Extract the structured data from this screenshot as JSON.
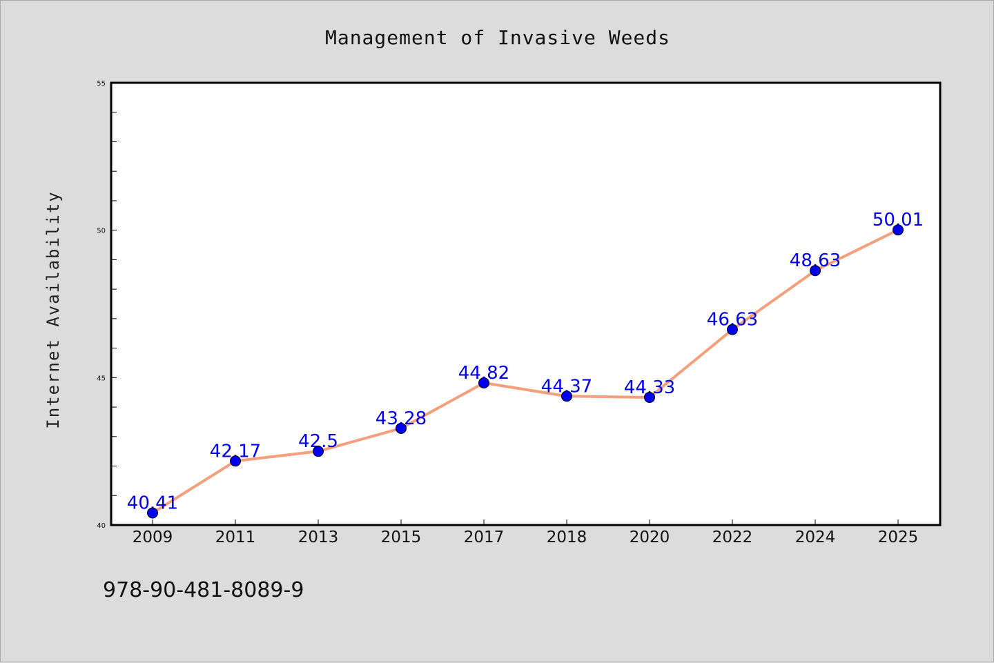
{
  "figure": {
    "background": "#dcdcdc",
    "isbn": "978-90-481-8089-9"
  },
  "chart_data": {
    "type": "line",
    "title": "Management of Invasive Weeds",
    "xlabel": "",
    "ylabel": "Internet Availability",
    "categories": [
      "2009",
      "2011",
      "2013",
      "2015",
      "2017",
      "2018",
      "2020",
      "2022",
      "2024",
      "2025"
    ],
    "series": [
      {
        "values": [
          40.41,
          42.17,
          42.5,
          43.28,
          44.82,
          44.37,
          44.33,
          46.63,
          48.63,
          50.01
        ],
        "data_labels": [
          "40.41",
          "42.17",
          "42.5",
          "43.28",
          "44.82",
          "44.37",
          "44.33",
          "46.63",
          "48.63",
          "50.01"
        ],
        "line_color": "#f4a07c",
        "marker_color": "#0000ee"
      }
    ],
    "ylim": [
      40,
      55
    ],
    "yticks": [
      "40",
      "45",
      "50",
      "55"
    ],
    "y_minor_step": 1,
    "grid": false,
    "plot_background": "#ffffff"
  }
}
